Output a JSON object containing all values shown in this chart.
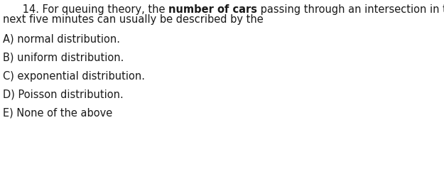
{
  "background_color": "#ffffff",
  "text_color": "#1a1a1a",
  "font_size": 10.5,
  "question_line1_pre": "      14. For queuing theory, the ",
  "question_bold": "number of cars",
  "question_line1_post": " passing through an intersection in the",
  "question_line2": "next five minutes can usually be described by the",
  "options": [
    "A) normal distribution.",
    "B) uniform distribution.",
    "C) exponential distribution.",
    "D) Poisson distribution.",
    "E) None of the above"
  ]
}
